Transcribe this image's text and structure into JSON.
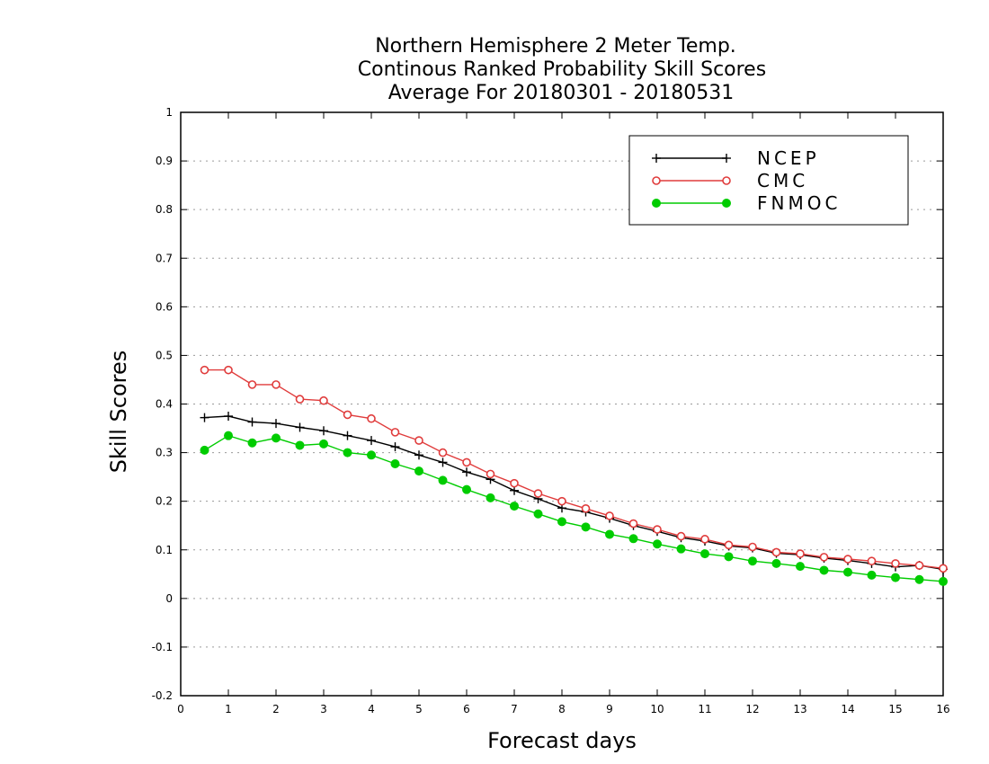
{
  "chart_data": {
    "type": "line",
    "title": [
      "Northern Hemisphere 2 Meter Temp.",
      "Continous Ranked Probability Skill Scores",
      "Average For 20180301 - 20180531"
    ],
    "xlabel": "Forecast days",
    "ylabel": "Skill Scores",
    "xlim": [
      0,
      16
    ],
    "ylim": [
      -0.2,
      1
    ],
    "xticks": [
      "0",
      "1",
      "2",
      "3",
      "4",
      "5",
      "6",
      "7",
      "8",
      "9",
      "10",
      "11",
      "12",
      "13",
      "14",
      "15",
      "16"
    ],
    "yticks": [
      "-0.2",
      "-0.1",
      "0",
      "0.1",
      "0.2",
      "0.3",
      "0.4",
      "0.5",
      "0.6",
      "0.7",
      "0.8",
      "0.9",
      "1"
    ],
    "grid": "horizontal dotted",
    "legend_position": "top-right",
    "x": [
      0.5,
      1,
      1.5,
      2,
      2.5,
      3,
      3.5,
      4,
      4.5,
      5,
      5.5,
      6,
      6.5,
      7,
      7.5,
      8,
      8.5,
      9,
      9.5,
      10,
      10.5,
      11,
      11.5,
      12,
      12.5,
      13,
      13.5,
      14,
      14.5,
      15,
      15.5,
      16
    ],
    "series": [
      {
        "name": "NCEP",
        "color": "#000000",
        "marker": "plus",
        "values": [
          0.372,
          0.375,
          0.363,
          0.36,
          0.352,
          0.345,
          0.335,
          0.325,
          0.312,
          0.295,
          0.28,
          0.26,
          0.245,
          0.222,
          0.205,
          0.186,
          0.178,
          0.165,
          0.15,
          0.138,
          0.125,
          0.118,
          0.108,
          0.104,
          0.093,
          0.09,
          0.083,
          0.078,
          0.072,
          0.065,
          0.068,
          0.06
        ]
      },
      {
        "name": "CMC",
        "color": "#e03c3c",
        "marker": "open-circle",
        "values": [
          0.47,
          0.47,
          0.44,
          0.44,
          0.41,
          0.407,
          0.378,
          0.37,
          0.342,
          0.325,
          0.3,
          0.28,
          0.256,
          0.237,
          0.216,
          0.2,
          0.185,
          0.17,
          0.154,
          0.142,
          0.128,
          0.122,
          0.11,
          0.106,
          0.095,
          0.092,
          0.085,
          0.081,
          0.077,
          0.072,
          0.068,
          0.062
        ]
      },
      {
        "name": "FNMOC",
        "color": "#00cc00",
        "marker": "filled-circle",
        "values": [
          0.305,
          0.335,
          0.32,
          0.33,
          0.315,
          0.318,
          0.3,
          0.295,
          0.277,
          0.262,
          0.243,
          0.224,
          0.207,
          0.19,
          0.174,
          0.158,
          0.147,
          0.132,
          0.123,
          0.112,
          0.102,
          0.092,
          0.086,
          0.077,
          0.072,
          0.066,
          0.058,
          0.054,
          0.048,
          0.043,
          0.039,
          0.035
        ]
      }
    ]
  }
}
